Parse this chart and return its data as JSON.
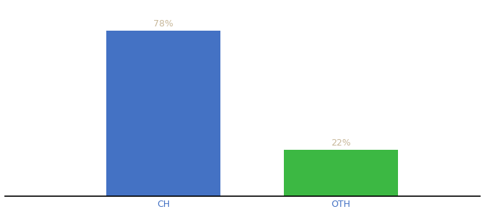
{
  "categories": [
    "CH",
    "OTH"
  ],
  "values": [
    78,
    22
  ],
  "bar_colors": [
    "#4472C4",
    "#3CB843"
  ],
  "label_color": "#C8B89A",
  "axis_label_color": "#4472C4",
  "background_color": "#ffffff",
  "bar_width": 0.18,
  "ylim": [
    0,
    90
  ],
  "value_labels": [
    "78%",
    "22%"
  ],
  "x_positions": [
    0.3,
    0.58
  ],
  "xlim": [
    0.05,
    0.8
  ]
}
